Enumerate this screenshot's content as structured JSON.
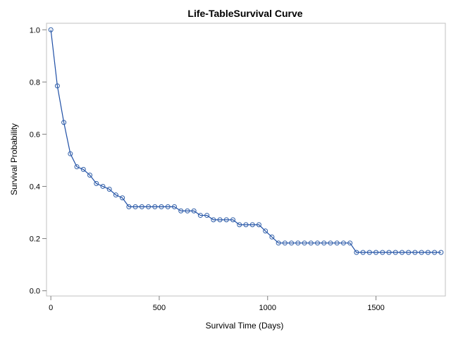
{
  "chart_data": {
    "type": "line",
    "title": "Life-TableSurvival Curve",
    "xlabel": "Survival Time (Days)",
    "ylabel": "Survival Probability",
    "xlim": [
      -20,
      1820
    ],
    "ylim": [
      -0.02,
      1.025
    ],
    "xticks": [
      0,
      500,
      1000,
      1500
    ],
    "yticks": [
      0.0,
      0.2,
      0.4,
      0.6,
      0.8,
      1.0
    ],
    "xtick_labels": [
      "0",
      "500",
      "1000",
      "1500"
    ],
    "ytick_labels": [
      "0.0",
      "0.2",
      "0.4",
      "0.6",
      "0.8",
      "1.0"
    ],
    "grid": false,
    "legend": "none",
    "colors": {
      "line": "#1f4fa6",
      "marker": "#2f5ea8",
      "frame": "#c0c0c0",
      "axis": "#7f7f7f"
    },
    "series": [
      {
        "x": [
          0,
          30,
          60,
          90,
          120,
          150,
          180,
          210,
          240,
          270,
          300,
          330,
          360,
          390,
          420,
          450,
          480,
          510,
          540,
          570,
          600,
          630,
          660,
          690,
          720,
          750,
          780,
          810,
          840,
          870,
          900,
          930,
          960,
          990,
          1020,
          1050,
          1080,
          1110,
          1140,
          1170,
          1200,
          1230,
          1260,
          1290,
          1320,
          1350,
          1380,
          1410,
          1440,
          1470,
          1500,
          1530,
          1560,
          1590,
          1620,
          1650,
          1680,
          1710,
          1740,
          1770,
          1800
        ],
        "y": [
          1.0,
          0.785,
          0.645,
          0.525,
          0.475,
          0.465,
          0.443,
          0.411,
          0.4,
          0.389,
          0.367,
          0.356,
          0.322,
          0.322,
          0.322,
          0.322,
          0.322,
          0.322,
          0.322,
          0.322,
          0.306,
          0.306,
          0.306,
          0.289,
          0.289,
          0.272,
          0.272,
          0.272,
          0.272,
          0.253,
          0.253,
          0.253,
          0.253,
          0.229,
          0.206,
          0.183,
          0.183,
          0.183,
          0.183,
          0.183,
          0.183,
          0.183,
          0.183,
          0.183,
          0.183,
          0.183,
          0.183,
          0.147,
          0.147,
          0.147,
          0.147,
          0.147,
          0.147,
          0.147,
          0.147,
          0.147,
          0.147,
          0.147,
          0.147,
          0.147,
          0.147
        ]
      }
    ]
  }
}
